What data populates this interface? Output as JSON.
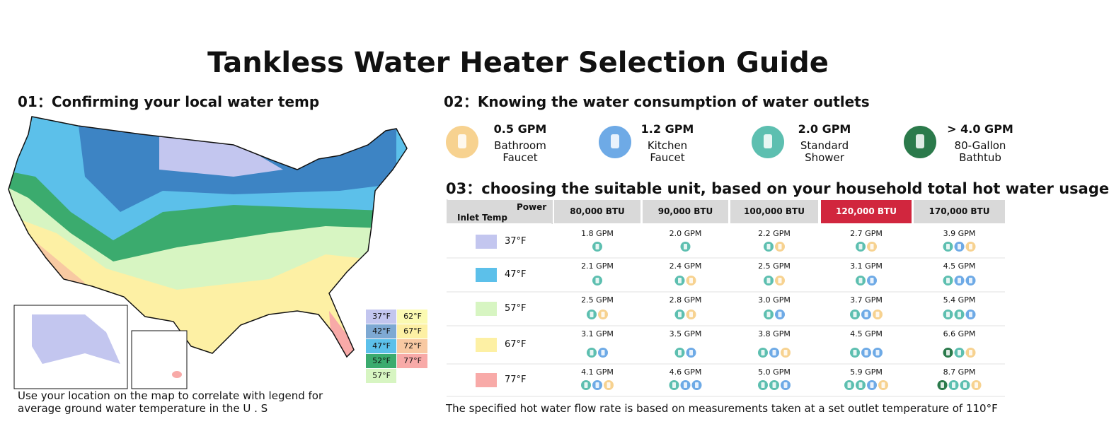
{
  "title": "Tankless Water Heater Selection Guide",
  "section1": {
    "heading": "01：Confirming your local water temp",
    "legend": [
      {
        "label": "37°F",
        "color": "#c3c6ef"
      },
      {
        "label": "42°F",
        "color": "#7ea9d3"
      },
      {
        "label": "47°F",
        "color": "#5cc0ea"
      },
      {
        "label": "52°F",
        "color": "#3bab6e"
      },
      {
        "label": "57°F",
        "color": "#d7f5c2"
      },
      {
        "label": "62°F",
        "color": "#fbfab2"
      },
      {
        "label": "67°F",
        "color": "#fdf0a4"
      },
      {
        "label": "72°F",
        "color": "#f8c9a2"
      },
      {
        "label": "77°F",
        "color": "#f8aaa8"
      }
    ],
    "note": [
      "Use your location on the map to correlate with legend for",
      "average ground water temperature in the U . S"
    ]
  },
  "section2": {
    "heading": "02：Knowing the water consumption of water outlets",
    "outlets": [
      {
        "flow": "0.5 GPM",
        "label": [
          "Bathroom",
          "Faucet"
        ],
        "color": "#f7d290"
      },
      {
        "flow": "1.2 GPM",
        "label": [
          "Kitchen",
          "Faucet"
        ],
        "color": "#6eaae6"
      },
      {
        "flow": "2.0 GPM",
        "label": [
          "Standard",
          "Shower"
        ],
        "color": "#5dbfb0"
      },
      {
        "flow": "> 4.0 GPM",
        "label": [
          "80-Gallon",
          "Bathtub"
        ],
        "color": "#2b7a4b"
      }
    ]
  },
  "section3": {
    "heading": "03：choosing the suitable unit, based on your household total hot water usage",
    "table": {
      "corner": [
        "Power",
        "Inlet Temp"
      ],
      "columns": [
        "80,000 BTU",
        "90,000 BTU",
        "100,000 BTU",
        "120,000 BTU",
        "170,000 BTU"
      ],
      "highlight": 3,
      "rows": [
        {
          "temp": "37°F",
          "color": "#c3c6ef",
          "cells": [
            {
              "gpm": "1.8 GPM",
              "fits": [
                2
              ]
            },
            {
              "gpm": "2.0 GPM",
              "fits": [
                2
              ]
            },
            {
              "gpm": "2.2 GPM",
              "fits": [
                2,
                0
              ]
            },
            {
              "gpm": "2.7 GPM",
              "fits": [
                2,
                0
              ]
            },
            {
              "gpm": "3.9 GPM",
              "fits": [
                2,
                1,
                0
              ]
            }
          ]
        },
        {
          "temp": "47°F",
          "color": "#5cc0ea",
          "cells": [
            {
              "gpm": "2.1 GPM",
              "fits": [
                2
              ]
            },
            {
              "gpm": "2.4 GPM",
              "fits": [
                2,
                0
              ]
            },
            {
              "gpm": "2.5 GPM",
              "fits": [
                2,
                0
              ]
            },
            {
              "gpm": "3.1 GPM",
              "fits": [
                2,
                1
              ]
            },
            {
              "gpm": "4.5 GPM",
              "fits": [
                2,
                1,
                1
              ]
            }
          ]
        },
        {
          "temp": "57°F",
          "color": "#d7f5c2",
          "cells": [
            {
              "gpm": "2.5 GPM",
              "fits": [
                2,
                0
              ]
            },
            {
              "gpm": "2.8 GPM",
              "fits": [
                2,
                0
              ]
            },
            {
              "gpm": "3.0 GPM",
              "fits": [
                2,
                1
              ]
            },
            {
              "gpm": "3.7 GPM",
              "fits": [
                2,
                1,
                0
              ]
            },
            {
              "gpm": "5.4 GPM",
              "fits": [
                2,
                2,
                1
              ]
            }
          ]
        },
        {
          "temp": "67°F",
          "color": "#fdf0a4",
          "cells": [
            {
              "gpm": "3.1 GPM",
              "fits": [
                2,
                1
              ]
            },
            {
              "gpm": "3.5 GPM",
              "fits": [
                2,
                1
              ]
            },
            {
              "gpm": "3.8 GPM",
              "fits": [
                2,
                1,
                0
              ]
            },
            {
              "gpm": "4.5 GPM",
              "fits": [
                2,
                1,
                1
              ]
            },
            {
              "gpm": "6.6 GPM",
              "fits": [
                3,
                2,
                0
              ]
            }
          ]
        },
        {
          "temp": "77°F",
          "color": "#f8aaa8",
          "cells": [
            {
              "gpm": "4.1 GPM",
              "fits": [
                2,
                1,
                0
              ]
            },
            {
              "gpm": "4.6 GPM",
              "fits": [
                2,
                1,
                1
              ]
            },
            {
              "gpm": "5.0 GPM",
              "fits": [
                2,
                2,
                1
              ]
            },
            {
              "gpm": "5.9 GPM",
              "fits": [
                2,
                2,
                1,
                0
              ]
            },
            {
              "gpm": "8.7 GPM",
              "fits": [
                3,
                2,
                2,
                0
              ]
            }
          ]
        }
      ]
    }
  },
  "footnote": "The specified hot water flow rate is based on measurements taken at a set outlet temperature of 110°F"
}
